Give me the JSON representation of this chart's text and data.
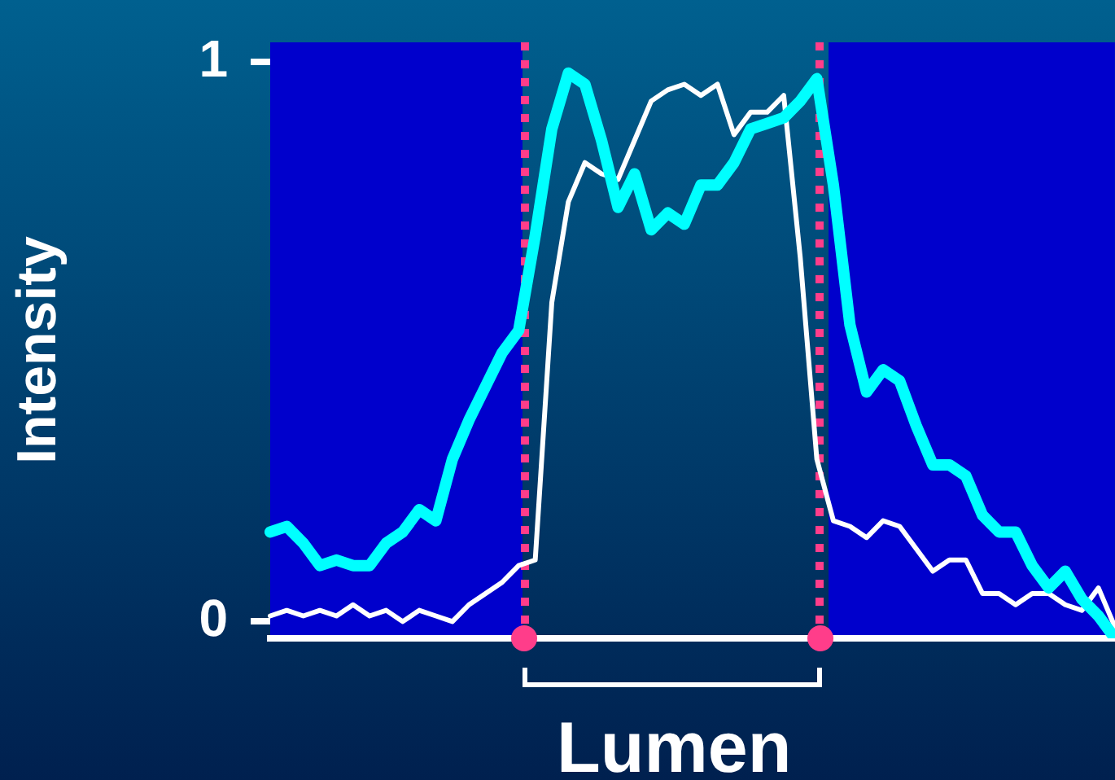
{
  "chart_data": {
    "type": "line",
    "ylabel": "Intensity",
    "ylim": [
      -0.03,
      1
    ],
    "yticks": [
      0,
      1
    ],
    "tick_labels": "y",
    "grid": false,
    "legend": false,
    "marker": "none",
    "annotations": [
      "Lumen"
    ],
    "categories": [
      null,
      null,
      null,
      null,
      null,
      null,
      null,
      null,
      null,
      null,
      null,
      null,
      null,
      null,
      null,
      null,
      null,
      null,
      null,
      null,
      null,
      null,
      null,
      null,
      null,
      null,
      null,
      null,
      null,
      null,
      null,
      null,
      null,
      null,
      null,
      null,
      null,
      null,
      null,
      null,
      null,
      null,
      null,
      null,
      null,
      null,
      null,
      null,
      null,
      null,
      null,
      null
    ],
    "series": [
      {
        "color": "#00ffff",
        "values": [
          0.16,
          0.17,
          0.14,
          0.1,
          0.11,
          0.1,
          0.1,
          0.14,
          0.16,
          0.2,
          0.18,
          0.29,
          0.36,
          0.42,
          0.48,
          0.52,
          0.69,
          0.88,
          0.98,
          0.96,
          0.86,
          0.74,
          0.8,
          0.7,
          0.73,
          0.71,
          0.78,
          0.78,
          0.82,
          0.88,
          0.89,
          0.9,
          0.93,
          0.97,
          0.78,
          0.53,
          0.41,
          0.45,
          0.43,
          0.35,
          0.28,
          0.28,
          0.26,
          0.19,
          0.16,
          0.16,
          0.1,
          0.06,
          0.09,
          0.04,
          0.01,
          -0.03
        ]
      },
      {
        "color": "#ffffff",
        "values": [
          0.01,
          0.02,
          0.01,
          0.02,
          0.01,
          0.03,
          0.01,
          0.02,
          0.0,
          0.02,
          0.01,
          0.0,
          0.03,
          0.05,
          0.07,
          0.1,
          0.11,
          0.57,
          0.75,
          0.82,
          0.8,
          0.79,
          0.86,
          0.93,
          0.95,
          0.96,
          0.94,
          0.96,
          0.87,
          0.91,
          0.91,
          0.94,
          0.65,
          0.29,
          0.18,
          0.17,
          0.15,
          0.18,
          0.17,
          0.13,
          0.09,
          0.11,
          0.11,
          0.05,
          0.05,
          0.03,
          0.05,
          0.05,
          0.03,
          0.02,
          0.06,
          -0.01
        ]
      }
    ]
  }
}
